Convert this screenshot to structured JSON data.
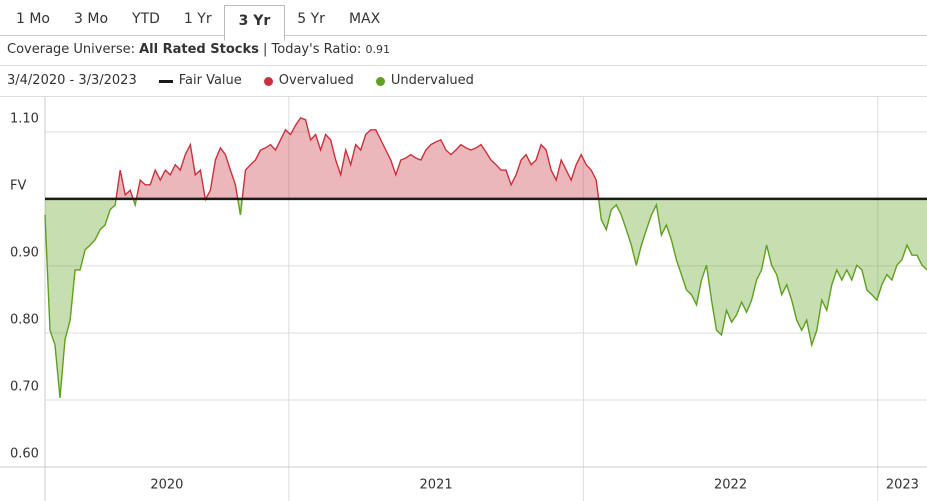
{
  "tabs": [
    "1 Mo",
    "3 Mo",
    "YTD",
    "1 Yr",
    "3 Yr",
    "5 Yr",
    "MAX"
  ],
  "active_tab": "3 Yr",
  "header": {
    "universe_label": "Coverage Universe:",
    "universe": "All Rated Stocks",
    "separator": "|",
    "ratio_label": "Today's Ratio:",
    "ratio": 0.91
  },
  "chart_data": {
    "type": "area",
    "date_range": "3/4/2020 - 3/3/2023",
    "legend": [
      {
        "name": "Fair Value",
        "color": "#1a1a1a",
        "marker": "line"
      },
      {
        "name": "Overvalued",
        "color": "#c9323d",
        "marker": "dot"
      },
      {
        "name": "Undervalued",
        "color": "#5ea01e",
        "marker": "dot"
      }
    ],
    "fair_value": 1,
    "xlim": [
      2020.172,
      2023.167
    ],
    "xticks": [
      {
        "value": 2020,
        "label": "2020"
      },
      {
        "value": 2021,
        "label": "2021"
      },
      {
        "value": 2022,
        "label": "2022"
      },
      {
        "value": 2023,
        "label": "2023"
      }
    ],
    "ylim": [
      0.6,
      1.152
    ],
    "yticks": [
      {
        "value": 0.6,
        "label": "0.60"
      },
      {
        "value": 0.7,
        "label": "0.70"
      },
      {
        "value": 0.8,
        "label": "0.80"
      },
      {
        "value": 0.9,
        "label": "0.90"
      },
      {
        "value": 1,
        "label": "FV"
      },
      {
        "value": 1.1,
        "label": "1.10"
      }
    ],
    "grid": true,
    "values": [
      0.976,
      0.804,
      0.782,
      0.703,
      0.79,
      0.819,
      0.894,
      0.894,
      0.924,
      0.931,
      0.939,
      0.954,
      0.961,
      0.984,
      0.991,
      1.043,
      1.006,
      1.013,
      0.991,
      1.028,
      1.021,
      1.021,
      1.043,
      1.028,
      1.043,
      1.036,
      1.051,
      1.043,
      1.066,
      1.081,
      1.036,
      1.043,
      0.999,
      1.013,
      1.058,
      1.076,
      1.066,
      1.043,
      1.021,
      0.976,
      1.043,
      1.051,
      1.058,
      1.073,
      1.076,
      1.081,
      1.073,
      1.088,
      1.103,
      1.096,
      1.11,
      1.121,
      1.118,
      1.088,
      1.096,
      1.073,
      1.096,
      1.088,
      1.058,
      1.036,
      1.073,
      1.051,
      1.081,
      1.073,
      1.096,
      1.103,
      1.103,
      1.088,
      1.073,
      1.058,
      1.036,
      1.058,
      1.061,
      1.066,
      1.061,
      1.058,
      1.073,
      1.081,
      1.085,
      1.088,
      1.073,
      1.066,
      1.073,
      1.081,
      1.076,
      1.073,
      1.076,
      1.081,
      1.07,
      1.058,
      1.051,
      1.043,
      1.043,
      1.021,
      1.036,
      1.058,
      1.066,
      1.051,
      1.058,
      1.081,
      1.073,
      1.043,
      1.028,
      1.058,
      1.043,
      1.028,
      1.051,
      1.066,
      1.051,
      1.043,
      1.028,
      0.969,
      0.954,
      0.984,
      0.991,
      0.976,
      0.954,
      0.931,
      0.901,
      0.931,
      0.954,
      0.976,
      0.991,
      0.946,
      0.961,
      0.939,
      0.909,
      0.887,
      0.864,
      0.857,
      0.842,
      0.879,
      0.901,
      0.849,
      0.804,
      0.797,
      0.834,
      0.816,
      0.827,
      0.846,
      0.831,
      0.849,
      0.879,
      0.894,
      0.931,
      0.901,
      0.887,
      0.857,
      0.872,
      0.849,
      0.819,
      0.804,
      0.819,
      0.782,
      0.804,
      0.849,
      0.834,
      0.872,
      0.894,
      0.879,
      0.894,
      0.879,
      0.901,
      0.894,
      0.864,
      0.857,
      0.849,
      0.872,
      0.887,
      0.879,
      0.901,
      0.909,
      0.931,
      0.916,
      0.916,
      0.901,
      0.894
    ]
  }
}
